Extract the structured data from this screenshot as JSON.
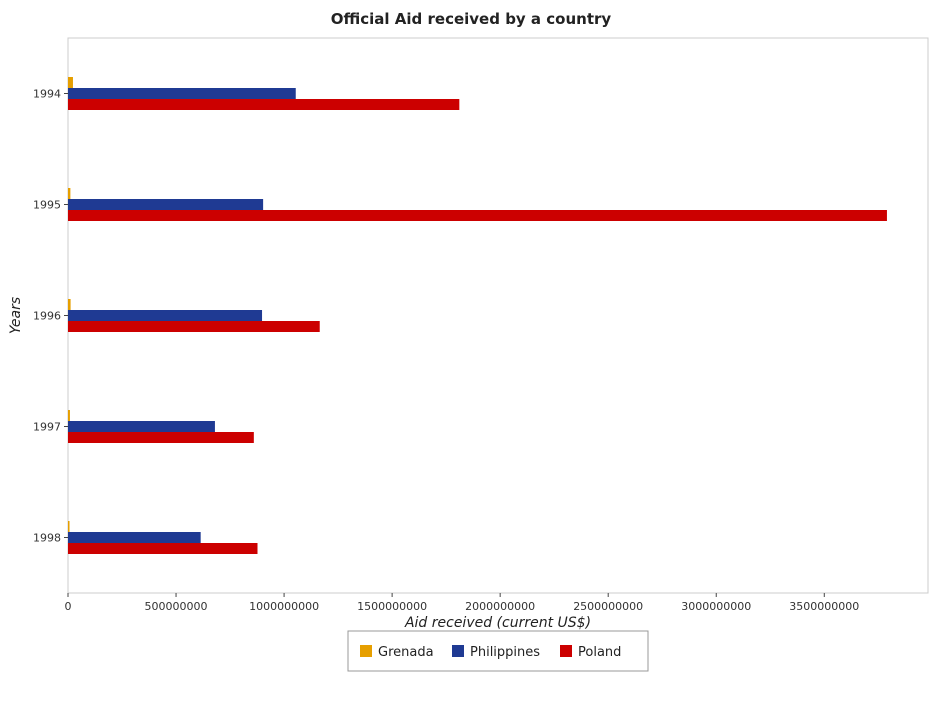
{
  "chart_data": {
    "type": "bar",
    "orientation": "horizontal",
    "title": "Official Aid received by a country",
    "xlabel": "Aid received (current US$)",
    "ylabel": "Years",
    "categories": [
      "1994",
      "1995",
      "1996",
      "1997",
      "1998"
    ],
    "series": [
      {
        "name": "Grenada",
        "color": "#e69f00",
        "values": [
          23000000,
          11000000,
          12000000,
          9000000,
          7000000
        ]
      },
      {
        "name": "Philippines",
        "color": "#1f3a93",
        "values": [
          1054000000,
          903000000,
          898000000,
          680000000,
          614000000
        ]
      },
      {
        "name": "Poland",
        "color": "#cc0000",
        "values": [
          1811000000,
          3790000000,
          1165000000,
          860000000,
          877000000
        ]
      }
    ],
    "xlim": [
      0,
      3980000000
    ],
    "xticks": [
      0,
      500000000,
      1000000000,
      1500000000,
      2000000000,
      2500000000,
      3000000000,
      3500000000
    ],
    "xtick_labels": [
      "0",
      "500000000",
      "1000000000",
      "1500000000",
      "2000000000",
      "2500000000",
      "3000000000",
      "3500000000"
    ],
    "grid": false,
    "legend_position": "bottom-center"
  }
}
